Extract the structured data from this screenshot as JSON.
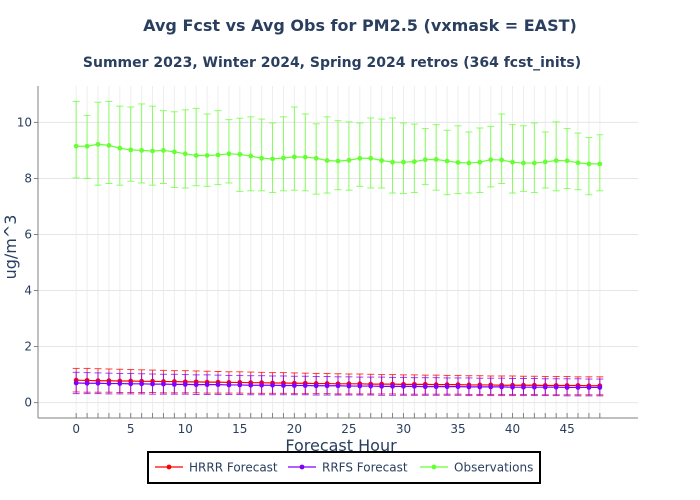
{
  "chart_data": {
    "type": "line",
    "title": "Avg Fcst vs Avg Obs for PM2.5 (vxmask = EAST)",
    "subtitle": "Summer 2023, Winter 2024, Spring 2024 retros (364 fcst_inits)",
    "xlabel": "Forecast Hour",
    "ylabel": "ug/m^3",
    "xlim": [
      -3.5,
      51.5
    ],
    "ylim": [
      -0.55,
      11.3
    ],
    "xticks": [
      0,
      5,
      10,
      15,
      20,
      25,
      30,
      35,
      40,
      45
    ],
    "yticks": [
      0,
      2,
      4,
      6,
      8,
      10
    ],
    "grid": true,
    "legend_position": "bottom",
    "x": [
      0,
      1,
      2,
      3,
      4,
      5,
      6,
      7,
      8,
      9,
      10,
      11,
      12,
      13,
      14,
      15,
      16,
      17,
      18,
      19,
      20,
      21,
      22,
      23,
      24,
      25,
      26,
      27,
      28,
      29,
      30,
      31,
      32,
      33,
      34,
      35,
      36,
      37,
      38,
      39,
      40,
      41,
      42,
      43,
      44,
      45,
      46,
      47,
      48
    ],
    "series": [
      {
        "name": "HRRR Forecast",
        "color": "#ff0000",
        "values": [
          0.8,
          0.79,
          0.78,
          0.78,
          0.77,
          0.77,
          0.76,
          0.76,
          0.75,
          0.75,
          0.74,
          0.74,
          0.73,
          0.73,
          0.72,
          0.72,
          0.71,
          0.71,
          0.7,
          0.7,
          0.69,
          0.69,
          0.68,
          0.68,
          0.67,
          0.67,
          0.67,
          0.66,
          0.66,
          0.66,
          0.65,
          0.65,
          0.65,
          0.64,
          0.64,
          0.64,
          0.63,
          0.63,
          0.63,
          0.62,
          0.62,
          0.62,
          0.62,
          0.61,
          0.61,
          0.61,
          0.61,
          0.6,
          0.6
        ],
        "err_low": [
          0.38,
          0.37,
          0.37,
          0.37,
          0.36,
          0.36,
          0.36,
          0.36,
          0.35,
          0.35,
          0.35,
          0.35,
          0.34,
          0.34,
          0.34,
          0.34,
          0.33,
          0.33,
          0.33,
          0.33,
          0.32,
          0.32,
          0.32,
          0.32,
          0.31,
          0.31,
          0.31,
          0.31,
          0.31,
          0.31,
          0.3,
          0.3,
          0.3,
          0.3,
          0.3,
          0.3,
          0.29,
          0.29,
          0.29,
          0.29,
          0.29,
          0.29,
          0.29,
          0.28,
          0.28,
          0.28,
          0.28,
          0.28,
          0.28
        ],
        "err_high": [
          1.22,
          1.22,
          1.21,
          1.2,
          1.19,
          1.18,
          1.17,
          1.16,
          1.15,
          1.14,
          1.14,
          1.13,
          1.12,
          1.11,
          1.1,
          1.1,
          1.09,
          1.08,
          1.07,
          1.07,
          1.06,
          1.05,
          1.04,
          1.04,
          1.03,
          1.02,
          1.02,
          1.01,
          1.0,
          1.0,
          0.99,
          0.99,
          0.98,
          0.98,
          0.97,
          0.97,
          0.96,
          0.96,
          0.95,
          0.95,
          0.95,
          0.94,
          0.94,
          0.93,
          0.93,
          0.93,
          0.92,
          0.92,
          0.92
        ]
      },
      {
        "name": "RRFS Forecast",
        "color": "#8000ff",
        "values": [
          0.7,
          0.69,
          0.69,
          0.68,
          0.68,
          0.67,
          0.67,
          0.66,
          0.66,
          0.65,
          0.65,
          0.64,
          0.64,
          0.64,
          0.63,
          0.63,
          0.62,
          0.62,
          0.62,
          0.61,
          0.61,
          0.61,
          0.6,
          0.6,
          0.6,
          0.59,
          0.59,
          0.59,
          0.58,
          0.58,
          0.58,
          0.58,
          0.57,
          0.57,
          0.57,
          0.57,
          0.56,
          0.56,
          0.56,
          0.56,
          0.55,
          0.55,
          0.55,
          0.55,
          0.55,
          0.54,
          0.54,
          0.54,
          0.54
        ],
        "err_low": [
          0.32,
          0.32,
          0.32,
          0.31,
          0.31,
          0.31,
          0.31,
          0.3,
          0.3,
          0.3,
          0.3,
          0.29,
          0.29,
          0.29,
          0.29,
          0.29,
          0.28,
          0.28,
          0.28,
          0.28,
          0.28,
          0.28,
          0.27,
          0.27,
          0.27,
          0.27,
          0.27,
          0.27,
          0.26,
          0.26,
          0.26,
          0.26,
          0.26,
          0.26,
          0.26,
          0.26,
          0.25,
          0.25,
          0.25,
          0.25,
          0.25,
          0.25,
          0.25,
          0.25,
          0.25,
          0.24,
          0.24,
          0.24,
          0.24
        ],
        "err_high": [
          1.08,
          1.07,
          1.06,
          1.05,
          1.04,
          1.04,
          1.03,
          1.02,
          1.01,
          1.01,
          1.0,
          0.99,
          0.99,
          0.98,
          0.97,
          0.97,
          0.96,
          0.96,
          0.95,
          0.95,
          0.94,
          0.94,
          0.93,
          0.93,
          0.92,
          0.92,
          0.91,
          0.91,
          0.91,
          0.9,
          0.9,
          0.89,
          0.89,
          0.89,
          0.88,
          0.88,
          0.88,
          0.87,
          0.87,
          0.87,
          0.86,
          0.86,
          0.86,
          0.85,
          0.85,
          0.85,
          0.85,
          0.84,
          0.84
        ]
      },
      {
        "name": "Observations",
        "color": "#66ff33",
        "values": [
          9.15,
          9.15,
          9.22,
          9.18,
          9.08,
          9.02,
          9.0,
          8.98,
          9.0,
          8.95,
          8.88,
          8.82,
          8.82,
          8.84,
          8.88,
          8.86,
          8.8,
          8.72,
          8.7,
          8.73,
          8.77,
          8.76,
          8.72,
          8.64,
          8.62,
          8.65,
          8.72,
          8.72,
          8.64,
          8.58,
          8.58,
          8.6,
          8.67,
          8.68,
          8.62,
          8.57,
          8.55,
          8.58,
          8.67,
          8.66,
          8.58,
          8.55,
          8.55,
          8.59,
          8.64,
          8.63,
          8.56,
          8.52,
          8.52
        ],
        "err_low": [
          8.02,
          8.0,
          7.76,
          7.82,
          7.76,
          7.9,
          7.84,
          7.76,
          7.82,
          7.68,
          7.66,
          7.74,
          7.72,
          7.78,
          7.84,
          7.54,
          7.56,
          7.56,
          7.5,
          7.56,
          7.58,
          7.56,
          7.44,
          7.48,
          7.6,
          7.58,
          7.72,
          7.66,
          7.66,
          7.48,
          7.46,
          7.5,
          7.78,
          7.58,
          7.42,
          7.46,
          7.48,
          7.5,
          7.7,
          7.82,
          7.48,
          7.54,
          7.5,
          7.66,
          7.56,
          7.64,
          7.6,
          7.42,
          7.56
        ],
        "err_high": [
          10.75,
          10.25,
          10.72,
          10.75,
          10.58,
          10.55,
          10.66,
          10.58,
          10.42,
          10.38,
          10.45,
          10.5,
          10.3,
          10.42,
          10.1,
          10.15,
          10.2,
          10.12,
          9.98,
          10.2,
          10.55,
          10.3,
          9.95,
          10.2,
          10.06,
          10.02,
          9.98,
          10.16,
          10.12,
          10.16,
          9.98,
          9.94,
          9.78,
          9.92,
          9.72,
          9.88,
          9.66,
          9.8,
          9.86,
          10.3,
          9.92,
          9.88,
          9.98,
          9.66,
          10.02,
          9.78,
          9.62,
          9.46,
          9.56
        ]
      }
    ]
  }
}
